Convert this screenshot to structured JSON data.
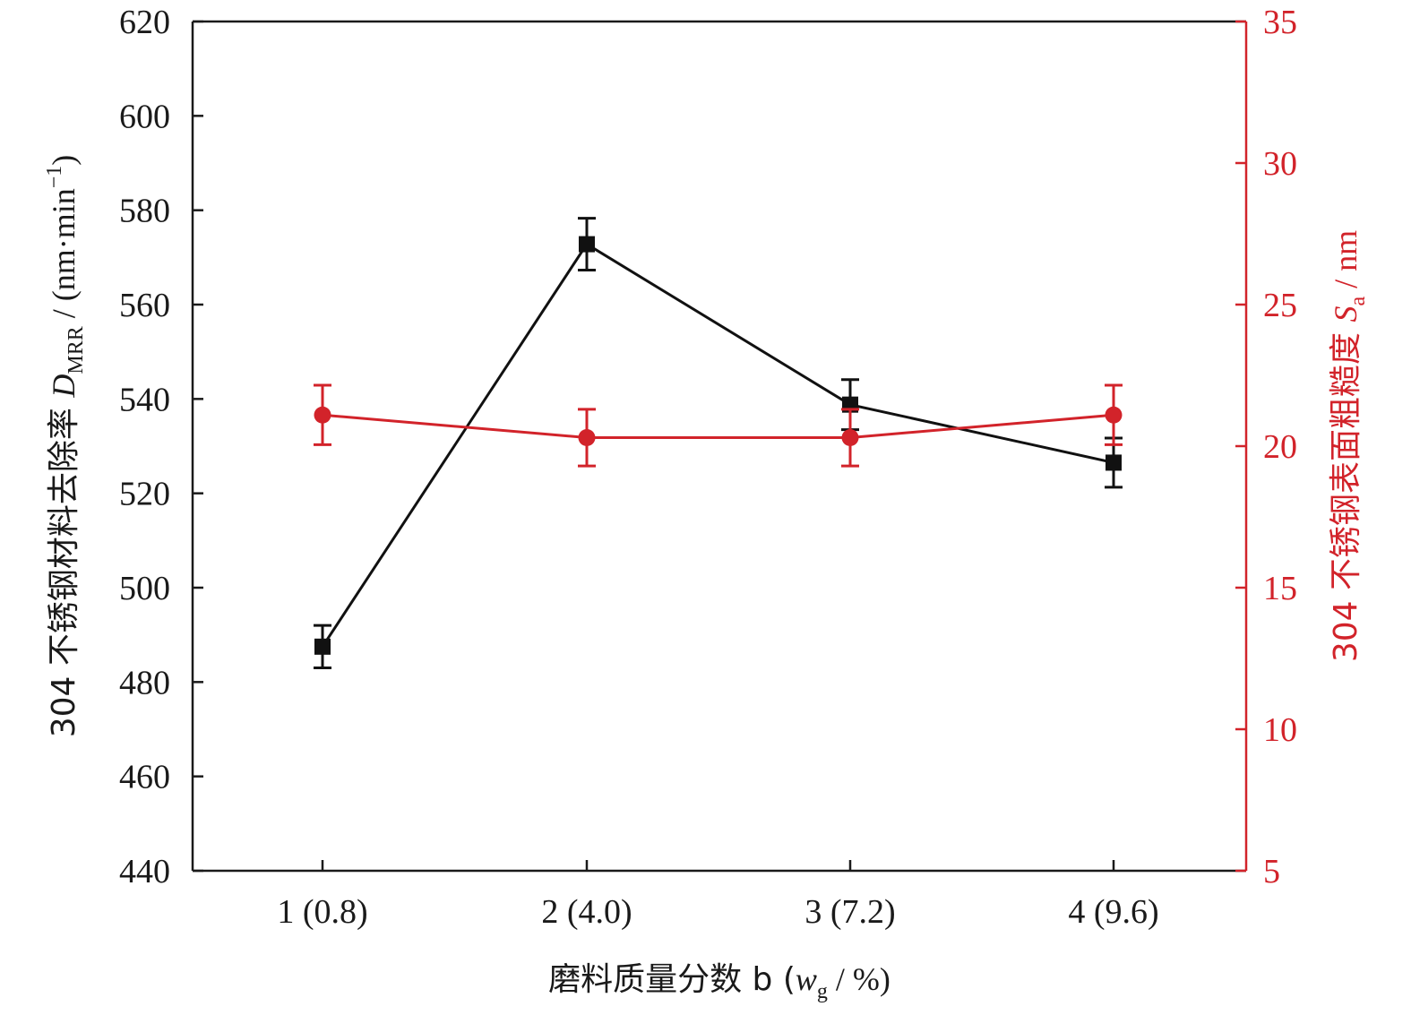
{
  "chart_data": {
    "type": "line",
    "categories": [
      "1 (0.8)",
      "2 (4.0)",
      "3 (7.2)",
      "4 (9.6)"
    ],
    "xlabel": {
      "main": "磨料质量分数 b (",
      "var": "w",
      "sub": "g",
      "tail": " / %)"
    },
    "ylabel_left": {
      "main": "304 不锈钢材料去除率 ",
      "var": "D",
      "sub": "MRR",
      "tail": " / (nm·min",
      "sup": "−1",
      "close": ")"
    },
    "ylabel_right": {
      "main": "304 不锈钢表面粗糙度 ",
      "var": "S",
      "sub": "a",
      "tail": " / nm"
    },
    "ylim_left": [
      440,
      620
    ],
    "yticks_left": [
      440,
      460,
      480,
      500,
      520,
      540,
      560,
      580,
      600,
      620
    ],
    "ylim_right": [
      5,
      35
    ],
    "yticks_right": [
      5,
      10,
      15,
      20,
      25,
      30,
      35
    ],
    "grid": false,
    "legend": "none",
    "series": [
      {
        "axis": "left",
        "marker": "square",
        "color": "#111111",
        "values": [
          487.5,
          572.8,
          538.8,
          526.5
        ],
        "errors": [
          4.5,
          5.5,
          5.3,
          5.2
        ]
      },
      {
        "axis": "right",
        "marker": "circle",
        "color": "#d2232a",
        "values": [
          21.1,
          20.3,
          20.3,
          21.1
        ],
        "errors": [
          1.05,
          1.0,
          1.0,
          1.05
        ]
      }
    ]
  }
}
